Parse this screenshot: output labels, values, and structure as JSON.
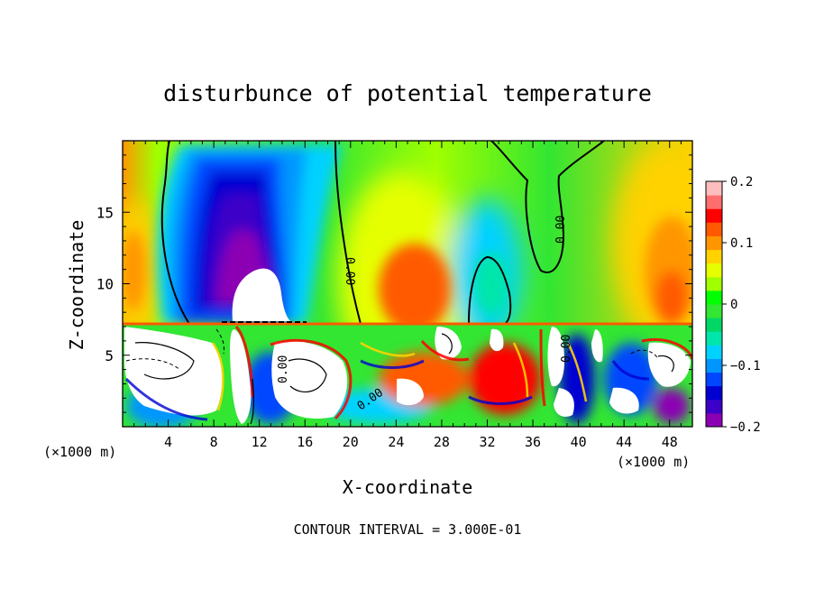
{
  "chart_data": {
    "type": "heatmap",
    "title": "disturbunce of potential temperature",
    "xlabel": "X-coordinate",
    "ylabel": "Z-coordinate",
    "x_unit": "(×1000 m)",
    "x_unit_right": "(×1000 m)",
    "xlim": [
      0,
      50
    ],
    "ylim": [
      0,
      20
    ],
    "x_ticks": [
      4,
      8,
      12,
      16,
      20,
      24,
      28,
      32,
      36,
      40,
      44,
      48
    ],
    "y_ticks": [
      5,
      10,
      15
    ],
    "colorbar": {
      "range": [
        -0.2,
        0.2
      ],
      "ticks": [
        0.2,
        0.1,
        0,
        -0.1,
        -0.2
      ],
      "tick_labels": [
        "0.2",
        "0.1",
        "0",
        "−0.1",
        "−0.2"
      ],
      "colors": [
        "#8c00b4",
        "#3c00c8",
        "#0000d2",
        "#0046ff",
        "#0096ff",
        "#00d2ff",
        "#00e6aa",
        "#00d764",
        "#32e632",
        "#00ff00",
        "#a0ff00",
        "#e6ff00",
        "#ffd200",
        "#ff9600",
        "#ff5a00",
        "#ff0000",
        "#ff6e6e",
        "#ffbebe"
      ]
    },
    "contour_labels": [
      "0.00",
      "0.00",
      "0.00",
      "0.00",
      "0.00"
    ],
    "footer": "CONTOUR INTERVAL = 3.000E-01",
    "features": [
      {
        "kind": "cold anomaly",
        "x_center": 9.5,
        "z_center": 14.5,
        "value": -0.15
      },
      {
        "kind": "warm anomaly",
        "x_center": 27,
        "z_center": 9.5,
        "value": 0.12
      },
      {
        "kind": "warm anomaly",
        "x_center": 48,
        "z_center": 14,
        "value": 0.1
      },
      {
        "kind": "warm anomaly",
        "x_center": 1,
        "z_center": 10,
        "value": 0.09
      },
      {
        "kind": "turbulent layer",
        "z_top": 7.2
      }
    ]
  }
}
